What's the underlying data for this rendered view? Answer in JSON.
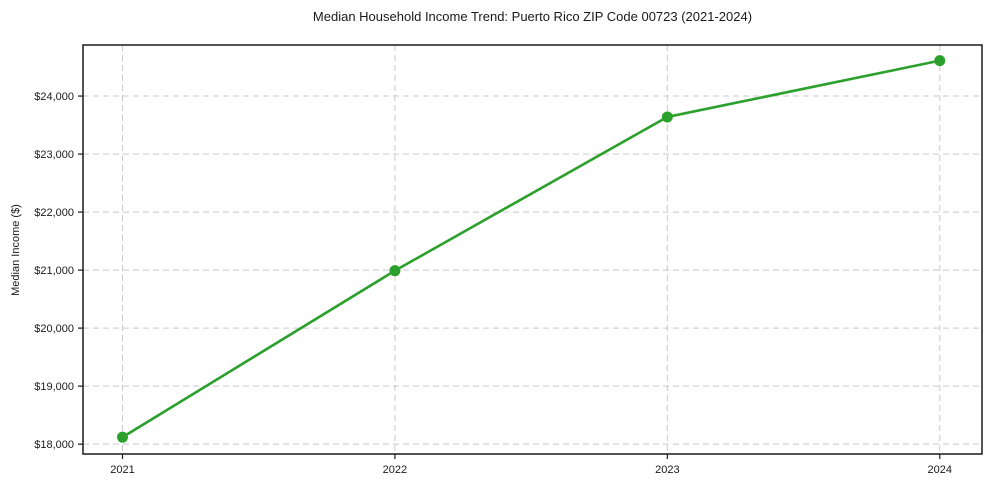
{
  "chart_data": {
    "type": "line",
    "title": "Median Household Income Trend: Puerto Rico ZIP Code 00723 (2021-2024)",
    "xlabel": "",
    "ylabel": "Median Income ($)",
    "x": [
      2021,
      2022,
      2023,
      2024
    ],
    "x_tick_labels": [
      "2021",
      "2022",
      "2023",
      "2024"
    ],
    "series": [
      {
        "name": "Median Household Income",
        "values": [
          18120,
          20990,
          23640,
          24610
        ],
        "color": "#2ca02c",
        "marker": "circle"
      }
    ],
    "y_ticks": [
      18000,
      19000,
      20000,
      21000,
      22000,
      23000,
      24000
    ],
    "y_tick_labels": [
      "$18,000",
      "$19,000",
      "$20,000",
      "$21,000",
      "$22,000",
      "$23,000",
      "$24,000"
    ],
    "xlim": [
      2020.855,
      2024.155
    ],
    "ylim": [
      17830,
      24880
    ],
    "grid": true,
    "grid_style": "dashed",
    "legend": "none",
    "colors": {
      "line": "#2ca02c",
      "grid": "#c9c9c9",
      "axis": "#1a1a1a",
      "text": "#1a1a1a",
      "background": "#ffffff"
    }
  }
}
